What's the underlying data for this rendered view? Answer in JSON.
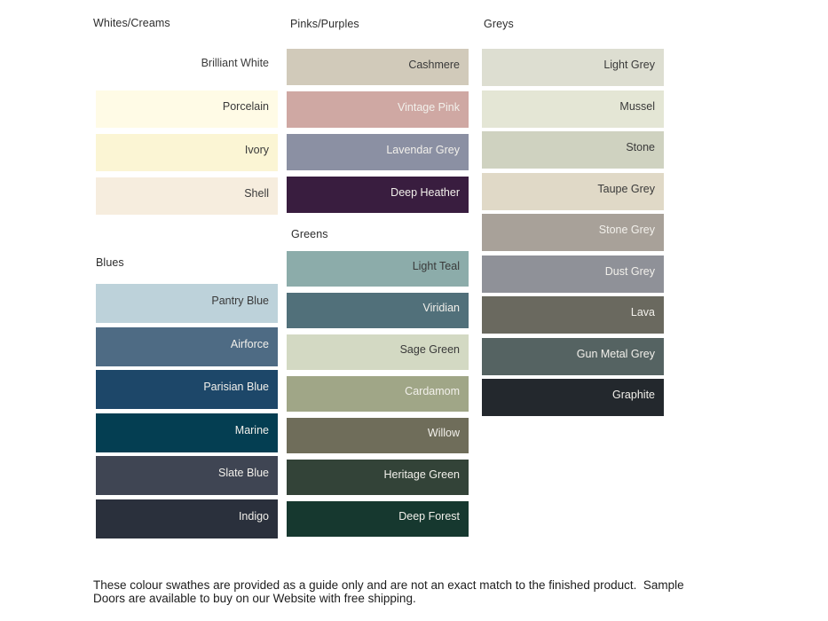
{
  "sections": [
    {
      "title": "Whites/Creams",
      "swatches": [
        {
          "name": "Brilliant White",
          "color": "#FFFFFF",
          "label_style": "dark"
        },
        {
          "name": "Porcelain",
          "color": "#FFFBE6",
          "label_style": "dark"
        },
        {
          "name": "Ivory",
          "color": "#FBF5D4",
          "label_style": "dark"
        },
        {
          "name": "Shell",
          "color": "#F6EDDE",
          "label_style": "dark"
        }
      ]
    },
    {
      "title": "Blues",
      "swatches": [
        {
          "name": "Pantry Blue",
          "color": "#BDD2DA",
          "label_style": "dark"
        },
        {
          "name": "Airforce",
          "color": "#4E6B84",
          "label_style": "light"
        },
        {
          "name": "Parisian Blue",
          "color": "#1D4769",
          "label_style": "light"
        },
        {
          "name": "Marine",
          "color": "#043E52",
          "label_style": "light"
        },
        {
          "name": "Slate Blue",
          "color": "#3F4553",
          "label_style": "light"
        },
        {
          "name": "Indigo",
          "color": "#2A303C",
          "label_style": "light"
        }
      ]
    },
    {
      "title": "Pinks/Purples",
      "swatches": [
        {
          "name": "Cashmere",
          "color": "#D1CABA",
          "label_style": "dark"
        },
        {
          "name": "Vintage Pink",
          "color": "#CFA8A3",
          "label_style": "light"
        },
        {
          "name": "Lavendar Grey",
          "color": "#8B90A3",
          "label_style": "light"
        },
        {
          "name": "Deep Heather",
          "color": "#391D3F",
          "label_style": "light"
        }
      ]
    },
    {
      "title": "Greens",
      "swatches": [
        {
          "name": "Light Teal",
          "color": "#8CACAA",
          "label_style": "dark"
        },
        {
          "name": "Viridian",
          "color": "#51707A",
          "label_style": "light"
        },
        {
          "name": "Sage Green",
          "color": "#D3D9C3",
          "label_style": "dark"
        },
        {
          "name": "Cardamom",
          "color": "#A0A687",
          "label_style": "light"
        },
        {
          "name": "Willow",
          "color": "#6F6D5A",
          "label_style": "light"
        },
        {
          "name": "Heritage Green",
          "color": "#334338",
          "label_style": "light"
        },
        {
          "name": "Deep Forest",
          "color": "#16382F",
          "label_style": "light"
        }
      ]
    },
    {
      "title": "Greys",
      "swatches": [
        {
          "name": "Light Grey",
          "color": "#DDDED1",
          "label_style": "dark"
        },
        {
          "name": "Mussel",
          "color": "#E4E6D5",
          "label_style": "dark"
        },
        {
          "name": "Stone",
          "color": "#CFD2C0",
          "label_style": "dark"
        },
        {
          "name": "Taupe Grey",
          "color": "#E0D9C7",
          "label_style": "dark"
        },
        {
          "name": "Stone Grey",
          "color": "#A8A199",
          "label_style": "light"
        },
        {
          "name": "Dust Grey",
          "color": "#8F9198",
          "label_style": "light"
        },
        {
          "name": "Lava",
          "color": "#6A695F",
          "label_style": "light"
        },
        {
          "name": "Gun Metal Grey",
          "color": "#556362",
          "label_style": "light"
        },
        {
          "name": "Graphite",
          "color": "#23282D",
          "label_style": "light"
        }
      ]
    }
  ],
  "footnote": {
    "lines": [
      "These colour swathes are provided as a guide only and are not an exact match to the finished product.  Sample",
      "Doors are available to buy on our Website with free shipping."
    ]
  },
  "colors": {
    "label_dark": "#3A3A3A",
    "label_light": "#F2F0EB",
    "heading_text": "#2D2D2D",
    "footnote_text": "#1D1D1D",
    "background": "#FFFFFF"
  }
}
